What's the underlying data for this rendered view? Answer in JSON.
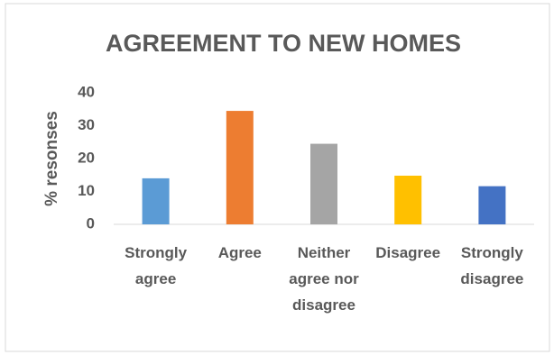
{
  "chart_data": {
    "type": "bar",
    "title": "AGREEMENT TO NEW HOMES",
    "y_label": "% resonses",
    "categories": [
      "Strongly agree",
      "Agree",
      "Neither agree nor disagree",
      "Disagree",
      "Strongly disagree"
    ],
    "values": [
      14,
      34.5,
      24.5,
      14.8,
      11.6
    ],
    "colors": [
      "#5b9bd5",
      "#ed7d31",
      "#a5a5a5",
      "#ffc000",
      "#4472c4"
    ],
    "ylim": [
      0,
      40
    ],
    "yticks": [
      0,
      10,
      20,
      30,
      40
    ],
    "grid": false
  }
}
